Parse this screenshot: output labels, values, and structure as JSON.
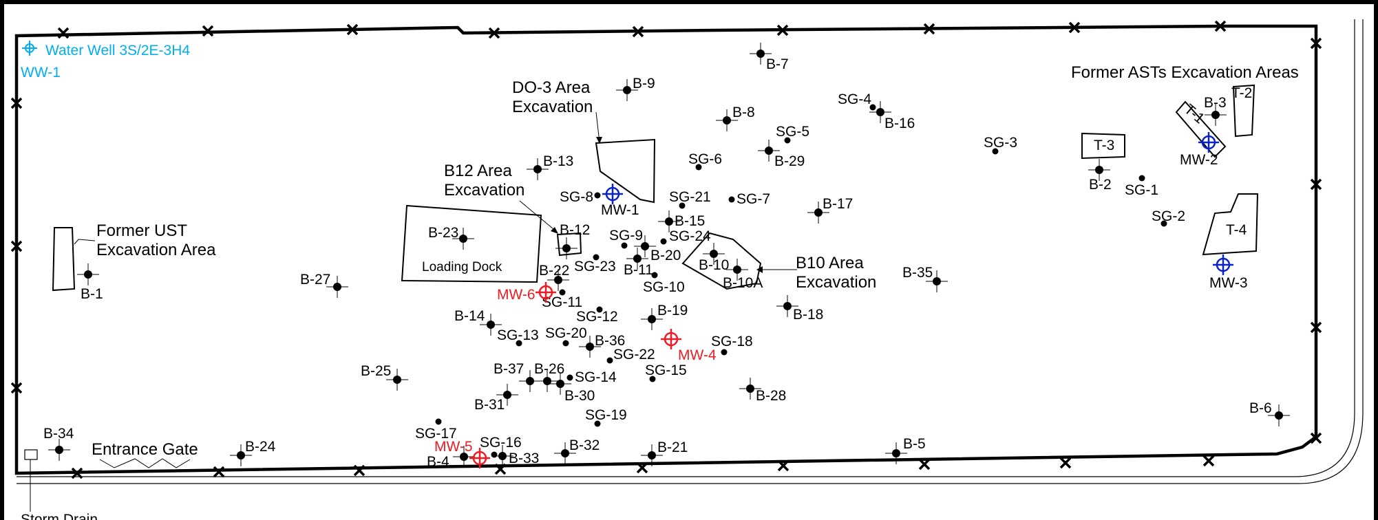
{
  "colors": {
    "boundary": "#000000",
    "water_well": "#00aeef",
    "mw_red": "#ed1c24",
    "mw_blue": "#0a22c8"
  },
  "water_well": {
    "name": "Water Well 3S/2E-3H4",
    "id": "WW-1"
  },
  "areas": {
    "former_asts": "Former ASTs Excavation Areas",
    "do3_line1": "DO-3 Area",
    "do3_line2": "Excavation",
    "b12_line1": "B12 Area",
    "b12_line2": "Excavation",
    "ust_line1": "Former UST",
    "ust_line2": "Excavation Area",
    "b10_line1": "B10 Area",
    "b10_line2": "Excavation",
    "loading_dock": "Loading Dock",
    "entrance_gate": "Entrance Gate",
    "storm_drain": "Storm Drain"
  },
  "tanks": {
    "t1": "T-1",
    "t2": "T-2",
    "t3": "T-3",
    "t4": "T-4"
  },
  "borings": {
    "b1": "B-1",
    "b2": "B-2",
    "b3": "B-3",
    "b4": "B-4",
    "b5": "B-5",
    "b6": "B-6",
    "b7": "B-7",
    "b8": "B-8",
    "b9": "B-9",
    "b10": "B-10",
    "b10a": "B-10A",
    "b11": "B-11",
    "b12": "B-12",
    "b13": "B-13",
    "b14": "B-14",
    "b15": "B-15",
    "b16": "B-16",
    "b17": "B-17",
    "b18": "B-18",
    "b19": "B-19",
    "b20": "B-20",
    "b21": "B-21",
    "b22": "B-22",
    "b23": "B-23",
    "b24": "B-24",
    "b25": "B-25",
    "b26": "B-26",
    "b27": "B-27",
    "b28": "B-28",
    "b29": "B-29",
    "b30": "B-30",
    "b31": "B-31",
    "b32": "B-32",
    "b33": "B-33",
    "b34": "B-34",
    "b35": "B-35",
    "b36": "B-36",
    "b37": "B-37"
  },
  "soil_gas": {
    "sg1": "SG-1",
    "sg2": "SG-2",
    "sg3": "SG-3",
    "sg4": "SG-4",
    "sg5": "SG-5",
    "sg6": "SG-6",
    "sg7": "SG-7",
    "sg8": "SG-8",
    "sg9": "SG-9",
    "sg10": "SG-10",
    "sg11": "SG-11",
    "sg12": "SG-12",
    "sg13": "SG-13",
    "sg14": "SG-14",
    "sg15": "SG-15",
    "sg16": "SG-16",
    "sg17": "SG-17",
    "sg18": "SG-18",
    "sg19": "SG-19",
    "sg20": "SG-20",
    "sg21": "SG-21",
    "sg22": "SG-22",
    "sg23": "SG-23",
    "sg24": "SG-24"
  },
  "monitoring_wells": {
    "mw1": "MW-1",
    "mw2": "MW-2",
    "mw3": "MW-3",
    "mw4": "MW-4",
    "mw5": "MW-5",
    "mw6": "MW-6"
  }
}
